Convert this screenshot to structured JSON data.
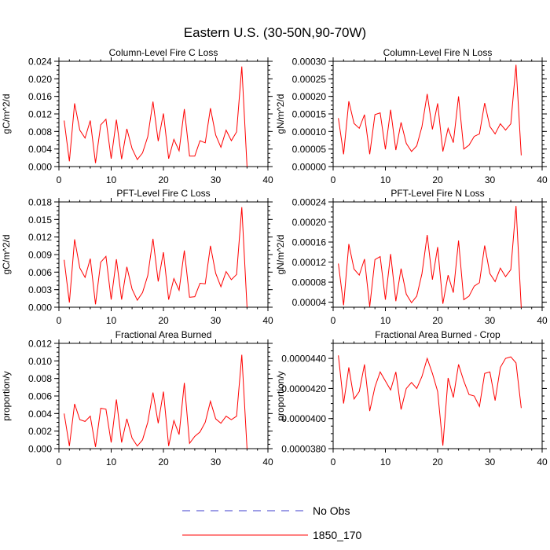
{
  "title": "Eastern U.S. (30-50N,90-70W)",
  "legend": {
    "entries": [
      {
        "label": "No Obs",
        "style": "dashed",
        "color": "#3d3dcc"
      },
      {
        "label": "1850_170",
        "style": "solid",
        "color": "#ff0000"
      }
    ]
  },
  "chart_data": [
    {
      "type": "line",
      "title": "Column-Level Fire C Loss",
      "ylabel": "gC/m^2/d",
      "xlim": [
        0,
        40
      ],
      "ylim": [
        0,
        0.024
      ],
      "xticks": [
        0,
        10,
        20,
        30,
        40
      ],
      "xtick_labels": [
        "0",
        "10",
        "20",
        "30",
        "40"
      ],
      "yticks": [
        0,
        0.004,
        0.008,
        0.012,
        0.016,
        0.02,
        0.024
      ],
      "ytick_labels": [
        "0.000",
        "0.004",
        "0.008",
        "0.012",
        "0.016",
        "0.020",
        "0.024"
      ],
      "x": [
        1,
        2,
        3,
        4,
        5,
        6,
        7,
        8,
        9,
        10,
        11,
        12,
        13,
        14,
        15,
        16,
        17,
        18,
        19,
        20,
        21,
        22,
        23,
        24,
        25,
        26,
        27,
        28,
        29,
        30,
        31,
        32,
        33,
        34,
        35,
        36
      ],
      "series": [
        {
          "name": "1850_170",
          "color": "#ff0000",
          "values": [
            0.0105,
            0.0012,
            0.0144,
            0.0083,
            0.0065,
            0.0105,
            0.0008,
            0.0095,
            0.0108,
            0.0018,
            0.0107,
            0.0017,
            0.0086,
            0.0041,
            0.0016,
            0.0031,
            0.0068,
            0.0148,
            0.0058,
            0.0121,
            0.0018,
            0.0062,
            0.0036,
            0.0131,
            0.0024,
            0.0024,
            0.0059,
            0.0054,
            0.0133,
            0.0072,
            0.0044,
            0.0083,
            0.0059,
            0.0079,
            0.0228,
            0.0
          ]
        }
      ]
    },
    {
      "type": "line",
      "title": "Column-Level Fire N Loss",
      "ylabel": "gN/m^2/d",
      "xlim": [
        0,
        40
      ],
      "ylim": [
        0,
        0.0003
      ],
      "xticks": [
        0,
        10,
        20,
        30,
        40
      ],
      "xtick_labels": [
        "0",
        "10",
        "20",
        "30",
        "40"
      ],
      "yticks": [
        0,
        5e-05,
        0.0001,
        0.00015,
        0.0002,
        0.00025,
        0.0003
      ],
      "ytick_labels": [
        "0.00000",
        "0.00005",
        "0.00010",
        "0.00015",
        "0.00020",
        "0.00025",
        "0.00030"
      ],
      "x": [
        1,
        2,
        3,
        4,
        5,
        6,
        7,
        8,
        9,
        10,
        11,
        12,
        13,
        14,
        15,
        16,
        17,
        18,
        19,
        20,
        21,
        22,
        23,
        24,
        25,
        26,
        27,
        28,
        29,
        30,
        31,
        32,
        33,
        34,
        35,
        36
      ],
      "series": [
        {
          "name": "1850_170",
          "color": "#ff0000",
          "values": [
            0.000138,
            3.5e-05,
            0.000186,
            0.000123,
            0.000109,
            0.000148,
            3.5e-05,
            0.000148,
            0.000153,
            4.9e-05,
            0.000162,
            4.7e-05,
            0.000126,
            6.6e-05,
            4.3e-05,
            5.9e-05,
            0.000114,
            0.000207,
            0.000106,
            0.00018,
            4.3e-05,
            0.000109,
            6.8e-05,
            0.0002,
            5e-05,
            6.1e-05,
            8.6e-05,
            9.3e-05,
            0.000181,
            0.000114,
            9.3e-05,
            0.000122,
            0.000104,
            0.000122,
            0.00029,
            3.2e-05
          ]
        }
      ]
    },
    {
      "type": "line",
      "title": "PFT-Level Fire C Loss",
      "ylabel": "gC/m^2/d",
      "xlim": [
        0,
        40
      ],
      "ylim": [
        0,
        0.018
      ],
      "xticks": [
        0,
        10,
        20,
        30,
        40
      ],
      "xtick_labels": [
        "0",
        "10",
        "20",
        "30",
        "40"
      ],
      "yticks": [
        0,
        0.003,
        0.006,
        0.009,
        0.012,
        0.015,
        0.018
      ],
      "ytick_labels": [
        "0.000",
        "0.003",
        "0.006",
        "0.009",
        "0.012",
        "0.015",
        "0.018"
      ],
      "x": [
        1,
        2,
        3,
        4,
        5,
        6,
        7,
        8,
        9,
        10,
        11,
        12,
        13,
        14,
        15,
        16,
        17,
        18,
        19,
        20,
        21,
        22,
        23,
        24,
        25,
        26,
        27,
        28,
        29,
        30,
        31,
        32,
        33,
        34,
        35,
        36
      ],
      "series": [
        {
          "name": "1850_170",
          "color": "#ff0000",
          "values": [
            0.0081,
            0.0008,
            0.0116,
            0.0067,
            0.0051,
            0.0083,
            0.0005,
            0.0077,
            0.0087,
            0.0013,
            0.0082,
            0.0013,
            0.0069,
            0.0031,
            0.0012,
            0.0025,
            0.0054,
            0.0117,
            0.0044,
            0.0094,
            0.0013,
            0.0049,
            0.0029,
            0.0097,
            0.0017,
            0.0018,
            0.0041,
            0.004,
            0.0105,
            0.0058,
            0.0035,
            0.0061,
            0.0047,
            0.0056,
            0.0171,
            0.0
          ]
        }
      ]
    },
    {
      "type": "line",
      "title": "PFT-Level Fire N Loss",
      "ylabel": "gN/m^2/d",
      "xlim": [
        0,
        40
      ],
      "ylim": [
        3e-05,
        0.00024
      ],
      "xticks": [
        0,
        10,
        20,
        30,
        40
      ],
      "xtick_labels": [
        "0",
        "10",
        "20",
        "30",
        "40"
      ],
      "yticks": [
        4e-05,
        8e-05,
        0.00012,
        0.00016,
        0.0002,
        0.00024
      ],
      "ytick_labels": [
        "0.00004",
        "0.00008",
        "0.00012",
        "0.00016",
        "0.00020",
        "0.00024"
      ],
      "x": [
        1,
        2,
        3,
        4,
        5,
        6,
        7,
        8,
        9,
        10,
        11,
        12,
        13,
        14,
        15,
        16,
        17,
        18,
        19,
        20,
        21,
        22,
        23,
        24,
        25,
        26,
        27,
        28,
        29,
        30,
        31,
        32,
        33,
        34,
        35,
        36
      ],
      "series": [
        {
          "name": "1850_170",
          "color": "#ff0000",
          "values": [
            0.000117,
            3.4e-05,
            0.000156,
            0.000106,
            9.4e-05,
            0.000126,
            3.1e-05,
            0.000125,
            0.000131,
            4.5e-05,
            0.000136,
            4.2e-05,
            0.000107,
            5.6e-05,
            3.9e-05,
            5.2e-05,
            9.7e-05,
            0.000174,
            8.5e-05,
            0.00015,
            3.7e-05,
            9.4e-05,
            5.9e-05,
            0.000163,
            4.5e-05,
            5.2e-05,
            7.2e-05,
            7.9e-05,
            0.000153,
            9.7e-05,
            8.1e-05,
            0.000108,
            9.1e-05,
            0.000105,
            0.000232,
            2.9e-05
          ]
        }
      ]
    },
    {
      "type": "line",
      "title": "Fractional Area Burned",
      "ylabel": "proportion/y",
      "xlim": [
        0,
        40
      ],
      "ylim": [
        0,
        0.012
      ],
      "xticks": [
        0,
        10,
        20,
        30,
        40
      ],
      "xtick_labels": [
        "0",
        "10",
        "20",
        "30",
        "40"
      ],
      "yticks": [
        0,
        0.002,
        0.004,
        0.006,
        0.008,
        0.01,
        0.012
      ],
      "ytick_labels": [
        "0.000",
        "0.002",
        "0.004",
        "0.006",
        "0.008",
        "0.010",
        "0.012"
      ],
      "x": [
        1,
        2,
        3,
        4,
        5,
        6,
        7,
        8,
        9,
        10,
        11,
        12,
        13,
        14,
        15,
        16,
        17,
        18,
        19,
        20,
        21,
        22,
        23,
        24,
        25,
        26,
        27,
        28,
        29,
        30,
        31,
        32,
        33,
        34,
        35,
        36
      ],
      "series": [
        {
          "name": "1850_170",
          "color": "#ff0000",
          "values": [
            0.004,
            0.0003,
            0.0051,
            0.0033,
            0.0031,
            0.0037,
            0.0002,
            0.0046,
            0.0045,
            0.0007,
            0.0056,
            0.0007,
            0.0034,
            0.0012,
            0.0003,
            0.001,
            0.003,
            0.0064,
            0.0029,
            0.0065,
            0.0003,
            0.0032,
            0.0016,
            0.0075,
            0.0006,
            0.0014,
            0.0019,
            0.003,
            0.0054,
            0.0034,
            0.0029,
            0.0037,
            0.0033,
            0.0037,
            0.0107,
            0.0
          ]
        }
      ]
    },
    {
      "type": "line",
      "title": "Fractional Area Burned - Crop",
      "ylabel": "proportion/y",
      "xlim": [
        0,
        40
      ],
      "ylim": [
        3.8e-05,
        4.5e-05
      ],
      "xticks": [
        0,
        10,
        20,
        30,
        40
      ],
      "xtick_labels": [
        "0",
        "10",
        "20",
        "30",
        "40"
      ],
      "yticks": [
        3.8e-05,
        4e-05,
        4.2e-05,
        4.4e-05
      ],
      "ytick_labels": [
        "0.0000380",
        "0.0000400",
        "0.0000420",
        "0.0000440"
      ],
      "x": [
        1,
        2,
        3,
        4,
        5,
        6,
        7,
        8,
        9,
        10,
        11,
        12,
        13,
        14,
        15,
        16,
        17,
        18,
        19,
        20,
        21,
        22,
        23,
        24,
        25,
        26,
        27,
        28,
        29,
        30,
        31,
        32,
        33,
        34,
        35,
        36
      ],
      "series": [
        {
          "name": "1850_170",
          "color": "#ff0000",
          "values": [
            4.42e-05,
            4.1e-05,
            4.34e-05,
            4.13e-05,
            4.18e-05,
            4.36e-05,
            4.05e-05,
            4.21e-05,
            4.31e-05,
            4.25e-05,
            4.19e-05,
            4.31e-05,
            4.06e-05,
            4.2e-05,
            4.24e-05,
            4.2e-05,
            4.28e-05,
            4.4e-05,
            4.3e-05,
            4.18e-05,
            3.82e-05,
            4.27e-05,
            4.14e-05,
            4.36e-05,
            4.25e-05,
            4.16e-05,
            4.15e-05,
            4.08e-05,
            4.3e-05,
            4.31e-05,
            4.12e-05,
            4.34e-05,
            4.4e-05,
            4.41e-05,
            4.37e-05,
            4.07e-05
          ]
        }
      ]
    }
  ]
}
